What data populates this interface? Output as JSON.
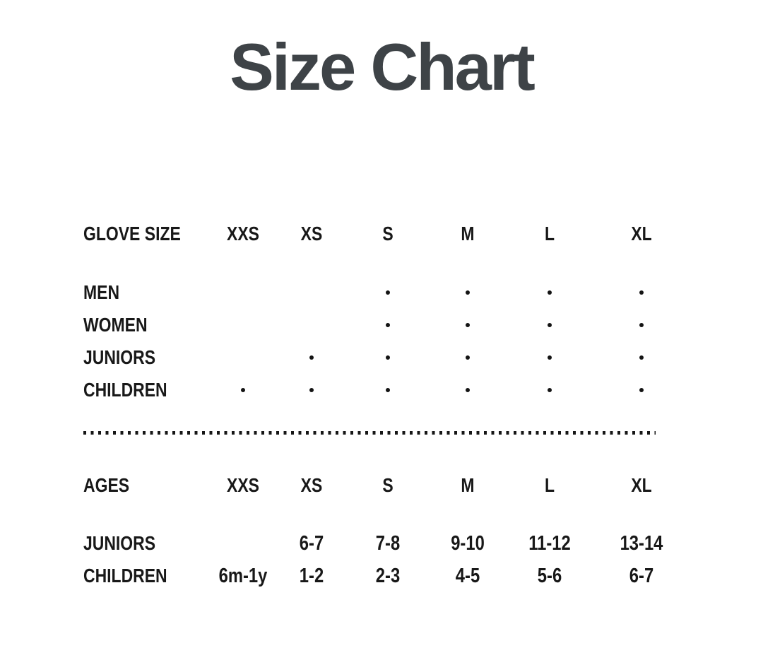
{
  "page": {
    "title": "Size Chart",
    "background_color": "#ffffff",
    "title_color": "#3e4347",
    "text_color": "#181818"
  },
  "glove_table": {
    "header": [
      "GLOVE SIZE",
      "XXS",
      "XS",
      "S",
      "M",
      "L",
      "XL"
    ],
    "rows": [
      {
        "label": "MEN",
        "marks": [
          false,
          false,
          true,
          true,
          true,
          true
        ]
      },
      {
        "label": "WOMEN",
        "marks": [
          false,
          false,
          true,
          true,
          true,
          true
        ]
      },
      {
        "label": "JUNIORS",
        "marks": [
          false,
          true,
          true,
          true,
          true,
          true
        ]
      },
      {
        "label": "CHILDREN",
        "marks": [
          true,
          true,
          true,
          true,
          true,
          true
        ]
      }
    ]
  },
  "ages_table": {
    "header": [
      "AGES",
      "XXS",
      "XS",
      "S",
      "M",
      "L",
      "XL"
    ],
    "rows": [
      {
        "label": "JUNIORS",
        "values": [
          "",
          "6-7",
          "7-8",
          "9-10",
          "11-12",
          "13-14"
        ]
      },
      {
        "label": "CHILDREN",
        "values": [
          "6m-1y",
          "1-2",
          "2-3",
          "4-5",
          "5-6",
          "6-7"
        ]
      }
    ]
  }
}
